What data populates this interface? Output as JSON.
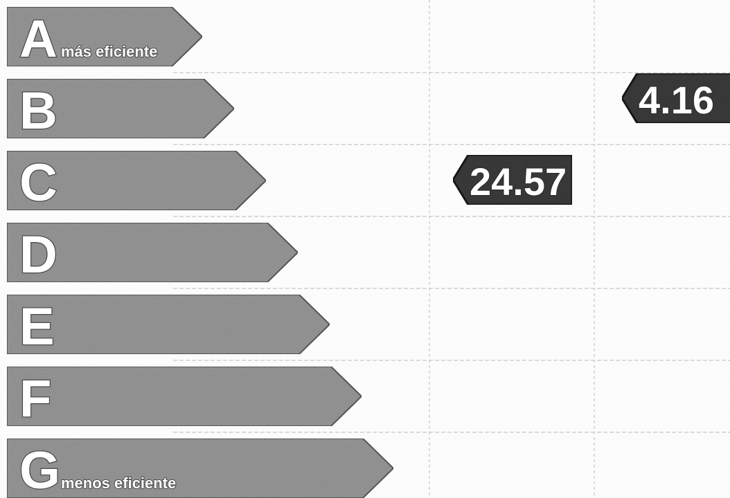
{
  "chart_data": {
    "type": "rating-scale",
    "rows": [
      {
        "letter": "A",
        "label": "más eficiente"
      },
      {
        "letter": "B",
        "label": ""
      },
      {
        "letter": "C",
        "label": ""
      },
      {
        "letter": "D",
        "label": ""
      },
      {
        "letter": "E",
        "label": ""
      },
      {
        "letter": "F",
        "label": ""
      },
      {
        "letter": "G",
        "label": "menos eficiente"
      }
    ],
    "indicators": [
      {
        "value": "24.57",
        "rating": "C",
        "column": 1
      },
      {
        "value": "4.16",
        "rating": "B",
        "column": 2
      }
    ],
    "colors": {
      "arrow_fill": "#9a9a9a",
      "arrow_stroke": "#5a5a5a",
      "indicator_fill": "#3c3c3c",
      "indicator_stroke": "#1a1a1a",
      "grid": "#cfcfcf",
      "text": "#ffffff"
    }
  }
}
